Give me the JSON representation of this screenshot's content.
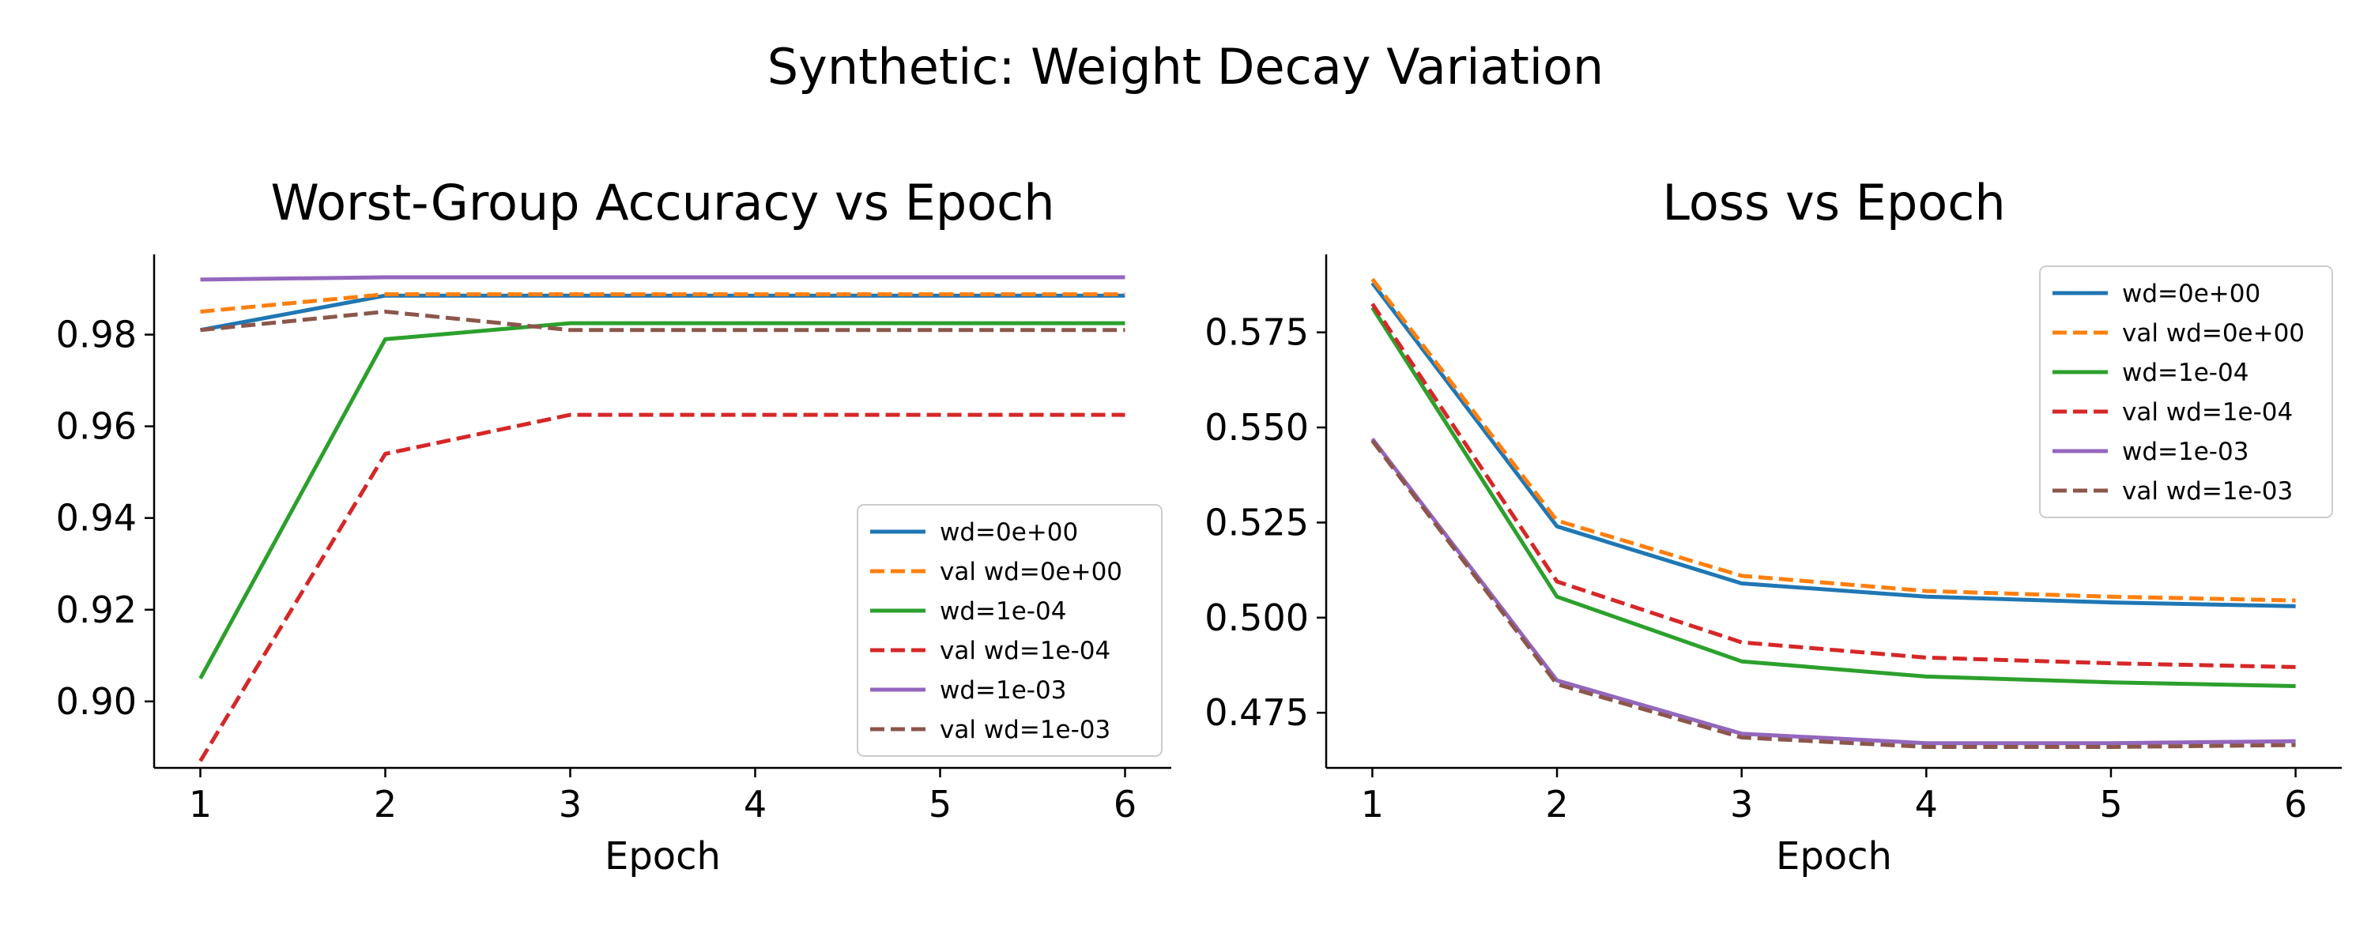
{
  "figure": {
    "title": "Synthetic: Weight Decay Variation"
  },
  "chart_data": [
    {
      "type": "line",
      "title": "Worst-Group Accuracy vs Epoch",
      "xlabel": "Epoch",
      "ylabel": "",
      "x": [
        1,
        2,
        3,
        4,
        5,
        6
      ],
      "xlim": [
        0.75,
        6.25
      ],
      "ylim": [
        0.8855,
        0.9975
      ],
      "xticks": [
        "1",
        "2",
        "3",
        "4",
        "5",
        "6"
      ],
      "yticks": [
        0.9,
        0.92,
        0.94,
        0.96,
        0.98
      ],
      "ytick_labels": [
        "0.90",
        "0.92",
        "0.94",
        "0.96",
        "0.98"
      ],
      "grid": false,
      "legend_position": "lower-right",
      "series": [
        {
          "name": "wd=0e+00",
          "color": "#1f77b4",
          "dash": "solid",
          "values": [
            0.981,
            0.9885,
            0.9885,
            0.9885,
            0.9885,
            0.9885
          ]
        },
        {
          "name": "val wd=0e+00",
          "color": "#ff7f0e",
          "dash": "dashed",
          "values": [
            0.985,
            0.9888,
            0.9888,
            0.9888,
            0.9888,
            0.9888
          ]
        },
        {
          "name": "wd=1e-04",
          "color": "#2ca02c",
          "dash": "solid",
          "values": [
            0.905,
            0.979,
            0.9825,
            0.9825,
            0.9825,
            0.9825
          ]
        },
        {
          "name": "val wd=1e-04",
          "color": "#d62728",
          "dash": "dashed",
          "values": [
            0.887,
            0.954,
            0.9625,
            0.9625,
            0.9625,
            0.9625
          ]
        },
        {
          "name": "wd=1e-03",
          "color": "#9467bd",
          "dash": "solid",
          "values": [
            0.992,
            0.9925,
            0.9925,
            0.9925,
            0.9925,
            0.9925
          ]
        },
        {
          "name": "val wd=1e-03",
          "color": "#8c564b",
          "dash": "dashed",
          "values": [
            0.981,
            0.985,
            0.981,
            0.981,
            0.981,
            0.981
          ]
        }
      ]
    },
    {
      "type": "line",
      "title": "Loss vs Epoch",
      "xlabel": "Epoch",
      "ylabel": "",
      "x": [
        1,
        2,
        3,
        4,
        5,
        6
      ],
      "xlim": [
        0.75,
        6.25
      ],
      "ylim": [
        0.4605,
        0.5955
      ],
      "xticks": [
        "1",
        "2",
        "3",
        "4",
        "5",
        "6"
      ],
      "yticks": [
        0.475,
        0.5,
        0.525,
        0.55,
        0.575
      ],
      "ytick_labels": [
        "0.475",
        "0.500",
        "0.525",
        "0.550",
        "0.575"
      ],
      "grid": false,
      "legend_position": "upper-right",
      "series": [
        {
          "name": "wd=0e+00",
          "color": "#1f77b4",
          "dash": "solid",
          "values": [
            0.588,
            0.524,
            0.509,
            0.5055,
            0.504,
            0.503
          ]
        },
        {
          "name": "val wd=0e+00",
          "color": "#ff7f0e",
          "dash": "dashed",
          "values": [
            0.589,
            0.5255,
            0.511,
            0.507,
            0.5055,
            0.5045
          ]
        },
        {
          "name": "wd=1e-04",
          "color": "#2ca02c",
          "dash": "solid",
          "values": [
            0.5815,
            0.5055,
            0.4885,
            0.4845,
            0.483,
            0.482
          ]
        },
        {
          "name": "val wd=1e-04",
          "color": "#d62728",
          "dash": "dashed",
          "values": [
            0.5825,
            0.5095,
            0.4935,
            0.4895,
            0.488,
            0.487
          ]
        },
        {
          "name": "wd=1e-03",
          "color": "#9467bd",
          "dash": "solid",
          "values": [
            0.547,
            0.4835,
            0.4695,
            0.467,
            0.467,
            0.4675
          ]
        },
        {
          "name": "val wd=1e-03",
          "color": "#8c564b",
          "dash": "dashed",
          "values": [
            0.5465,
            0.4825,
            0.4685,
            0.466,
            0.466,
            0.4665
          ]
        }
      ]
    }
  ]
}
